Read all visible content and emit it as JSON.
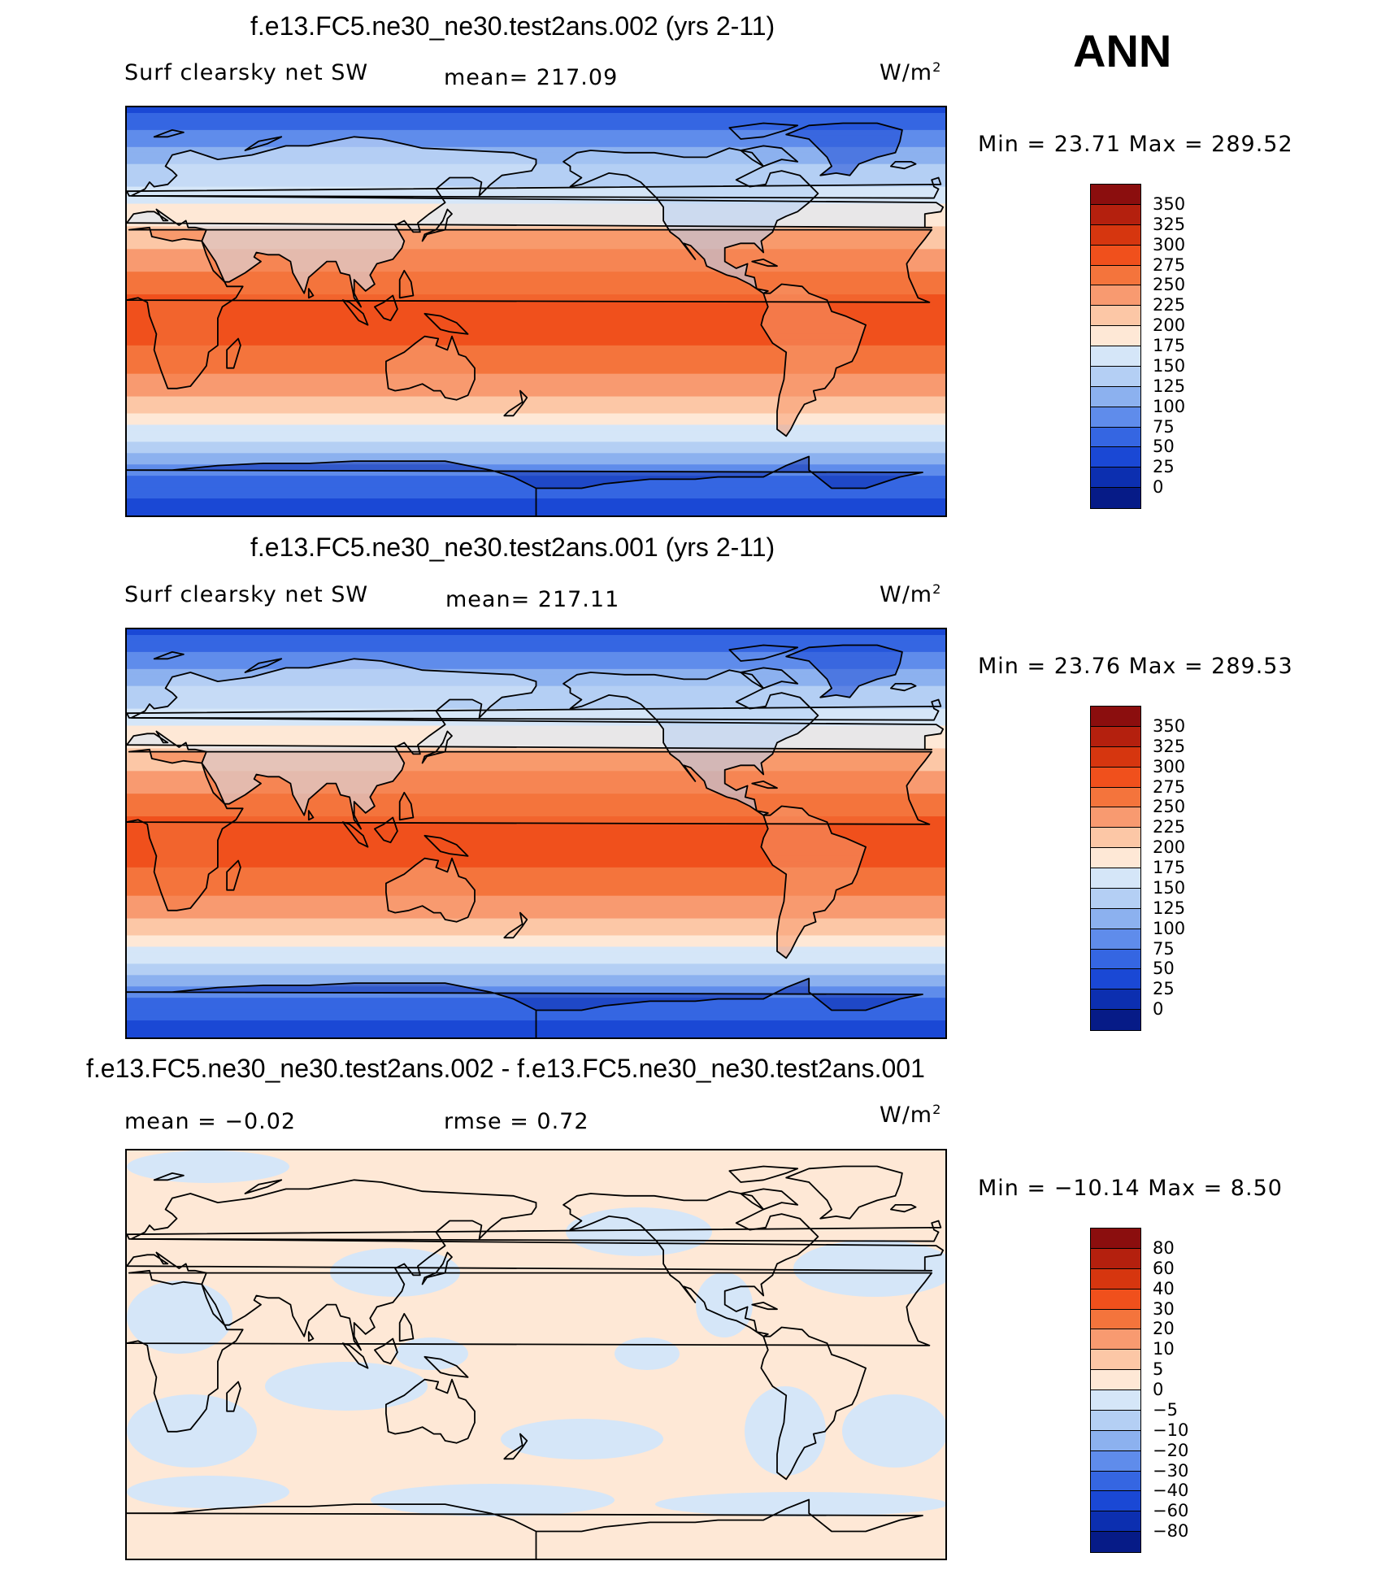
{
  "season": "ANN",
  "panels": [
    {
      "title": "f.e13.FC5.ne30_ne30.test2ans.002 (yrs 2-11)",
      "left_label": "Surf clearsky net SW",
      "center_label": "mean= 217.09",
      "units": "W/m",
      "units_sup": "2",
      "minmax": "Min =   23.71  Max = 289.52",
      "colorbar_ticks": [
        "350",
        "325",
        "300",
        "275",
        "250",
        "225",
        "200",
        "175",
        "150",
        "125",
        "100",
        "75",
        "50",
        "25",
        "0"
      ]
    },
    {
      "title": "f.e13.FC5.ne30_ne30.test2ans.001 (yrs 2-11)",
      "left_label": "Surf clearsky net SW",
      "center_label": "mean= 217.11",
      "units": "W/m",
      "units_sup": "2",
      "minmax": "Min =   23.76  Max = 289.53",
      "colorbar_ticks": [
        "350",
        "325",
        "300",
        "275",
        "250",
        "225",
        "200",
        "175",
        "150",
        "125",
        "100",
        "75",
        "50",
        "25",
        "0"
      ]
    },
    {
      "title": "f.e13.FC5.ne30_ne30.test2ans.002 - f.e13.FC5.ne30_ne30.test2ans.001",
      "left_label": "mean =   −0.02",
      "center_label": "rmse =    0.72",
      "units": "W/m",
      "units_sup": "2",
      "minmax": "Min = −10.14  Max =    8.50",
      "colorbar_ticks": [
        "80",
        "60",
        "40",
        "30",
        "20",
        "10",
        "5",
        "0",
        "−5",
        "−10",
        "−20",
        "−30",
        "−40",
        "−60",
        "−80"
      ]
    }
  ],
  "colors": {
    "colorbar": [
      "#8b0e0e",
      "#b4200e",
      "#d6360f",
      "#f0501c",
      "#f4743c",
      "#f89a70",
      "#fcc7a6",
      "#fee8d6",
      "#d5e6f8",
      "#b4cff4",
      "#8cb1ef",
      "#5f8ceb",
      "#3566e2",
      "#1a48d5",
      "#0c2fb0",
      "#061b87"
    ],
    "difference_positive": "#fee8d6",
    "difference_negative": "#d5e6f8"
  },
  "chart_data": [
    {
      "type": "heatmap",
      "title": "f.e13.FC5.ne30_ne30.test2ans.002 (yrs 2-11)",
      "variable": "Surf clearsky net SW",
      "units": "W/m2",
      "mean": 217.09,
      "min": 23.71,
      "max": 289.52,
      "colorbar_levels": [
        0,
        25,
        50,
        75,
        100,
        125,
        150,
        175,
        200,
        225,
        250,
        275,
        300,
        325,
        350
      ],
      "zonal_pattern_top_to_bottom": [
        40,
        75,
        110,
        140,
        165,
        195,
        220,
        245,
        270,
        285,
        280,
        270,
        245,
        215,
        175,
        140,
        80,
        30
      ]
    },
    {
      "type": "heatmap",
      "title": "f.e13.FC5.ne30_ne30.test2ans.001 (yrs 2-11)",
      "variable": "Surf clearsky net SW",
      "units": "W/m2",
      "mean": 217.11,
      "min": 23.76,
      "max": 289.53,
      "colorbar_levels": [
        0,
        25,
        50,
        75,
        100,
        125,
        150,
        175,
        200,
        225,
        250,
        275,
        300,
        325,
        350
      ],
      "zonal_pattern_top_to_bottom": [
        40,
        75,
        110,
        140,
        165,
        195,
        220,
        245,
        270,
        285,
        280,
        270,
        245,
        215,
        175,
        140,
        80,
        30
      ]
    },
    {
      "type": "heatmap",
      "title": "f.e13.FC5.ne30_ne30.test2ans.002 - f.e13.FC5.ne30_ne30.test2ans.001",
      "units": "W/m2",
      "mean": -0.02,
      "rmse": 0.72,
      "min": -10.14,
      "max": 8.5,
      "colorbar_levels": [
        -80,
        -60,
        -40,
        -30,
        -20,
        -10,
        -5,
        0,
        5,
        10,
        20,
        30,
        40,
        60,
        80
      ]
    }
  ]
}
